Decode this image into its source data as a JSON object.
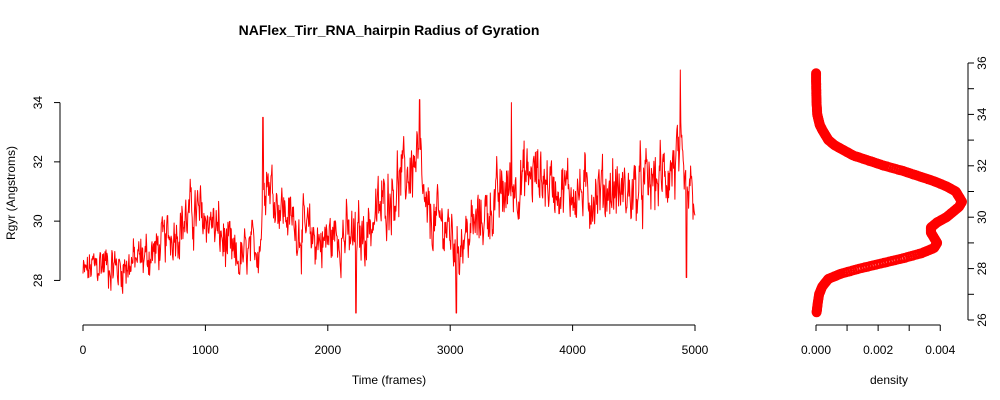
{
  "chart_data": [
    {
      "type": "line",
      "title": "NAFlex_Tirr_RNA_hairpin Radius of Gyration",
      "xlabel": "Time (frames)",
      "ylabel": "Rgyr (Angstroms)",
      "xlim": [
        0,
        5000
      ],
      "ylim": [
        26.8,
        35.2
      ],
      "x_ticks": [
        "0",
        "1000",
        "2000",
        "3000",
        "4000",
        "5000"
      ],
      "y_ticks": [
        "28",
        "30",
        "32",
        "34"
      ],
      "series_color": "#ff0000",
      "grid": false,
      "x_knots": [
        0,
        150,
        300,
        450,
        600,
        750,
        900,
        1050,
        1150,
        1250,
        1350,
        1450,
        1480,
        1550,
        1650,
        1800,
        1950,
        2100,
        2230,
        2350,
        2500,
        2650,
        2750,
        2800,
        2950,
        3050,
        3150,
        3300,
        3450,
        3550,
        3700,
        3850,
        4000,
        4150,
        4300,
        4450,
        4600,
        4750,
        4850,
        4900,
        4950,
        5000
      ],
      "y_knots": [
        28.2,
        28.6,
        28.4,
        28.7,
        29.0,
        29.7,
        30.3,
        30.0,
        29.3,
        28.6,
        28.9,
        29.3,
        31.8,
        31.0,
        30.3,
        29.6,
        29.3,
        29.6,
        29.3,
        29.9,
        30.9,
        31.6,
        32.1,
        30.1,
        29.9,
        29.3,
        29.6,
        30.3,
        31.0,
        31.3,
        31.6,
        31.2,
        31.0,
        30.9,
        31.1,
        30.9,
        31.2,
        31.5,
        32.0,
        31.2,
        30.8,
        30.8
      ],
      "noise_amplitude": [
        0.6,
        0.7,
        0.7,
        0.7,
        0.7,
        0.8,
        0.9,
        0.8,
        0.9,
        0.8,
        0.7,
        0.8,
        0.9,
        0.9,
        0.8,
        0.9,
        0.9,
        0.9,
        1.0,
        0.9,
        1.0,
        1.0,
        1.0,
        0.9,
        0.9,
        1.0,
        0.9,
        0.9,
        1.0,
        1.0,
        1.0,
        0.9,
        0.9,
        1.0,
        1.0,
        1.0,
        1.0,
        1.0,
        1.3,
        1.2,
        1.0,
        0.9
      ],
      "spikes": [
        {
          "x": 1470,
          "y": 33.5
        },
        {
          "x": 2230,
          "y": 26.9
        },
        {
          "x": 2750,
          "y": 34.1
        },
        {
          "x": 3050,
          "y": 26.9
        },
        {
          "x": 3500,
          "y": 34.0
        },
        {
          "x": 4880,
          "y": 35.1
        },
        {
          "x": 4930,
          "y": 28.1
        }
      ]
    },
    {
      "type": "line",
      "xlabel": "density",
      "ylabel": "",
      "xlim": [
        0,
        0.0047
      ],
      "ylim": [
        26,
        36
      ],
      "x_ticks": [
        "0.000",
        "0.002",
        "0.004"
      ],
      "y_ticks": [
        "26",
        "28",
        "30",
        "32",
        "34",
        "36"
      ],
      "series_color": "#ff0000",
      "y": [
        26.3,
        26.6,
        27.0,
        27.3,
        27.6,
        27.8,
        28.0,
        28.2,
        28.4,
        28.6,
        28.8,
        29.0,
        29.2,
        29.4,
        29.6,
        29.8,
        30.0,
        30.2,
        30.4,
        30.6,
        30.8,
        31.0,
        31.2,
        31.4,
        31.6,
        31.8,
        32.0,
        32.2,
        32.4,
        32.6,
        32.8,
        33.0,
        33.2,
        33.4,
        33.6,
        33.8,
        34.0,
        34.4,
        34.8,
        35.2,
        35.6
      ],
      "density": [
        2e-05,
        5e-05,
        0.0001,
        0.0002,
        0.0004,
        0.0008,
        0.0014,
        0.0021,
        0.0028,
        0.0034,
        0.0038,
        0.0039,
        0.0038,
        0.0037,
        0.0037,
        0.0039,
        0.0042,
        0.0044,
        0.0046,
        0.0047,
        0.0046,
        0.0045,
        0.0042,
        0.0038,
        0.0033,
        0.0028,
        0.0022,
        0.0017,
        0.0012,
        0.0009,
        0.0006,
        0.0004,
        0.0003,
        0.0002,
        0.00012,
        8e-05,
        4e-05,
        2e-05,
        1e-05,
        5e-06,
        2e-06
      ]
    }
  ]
}
